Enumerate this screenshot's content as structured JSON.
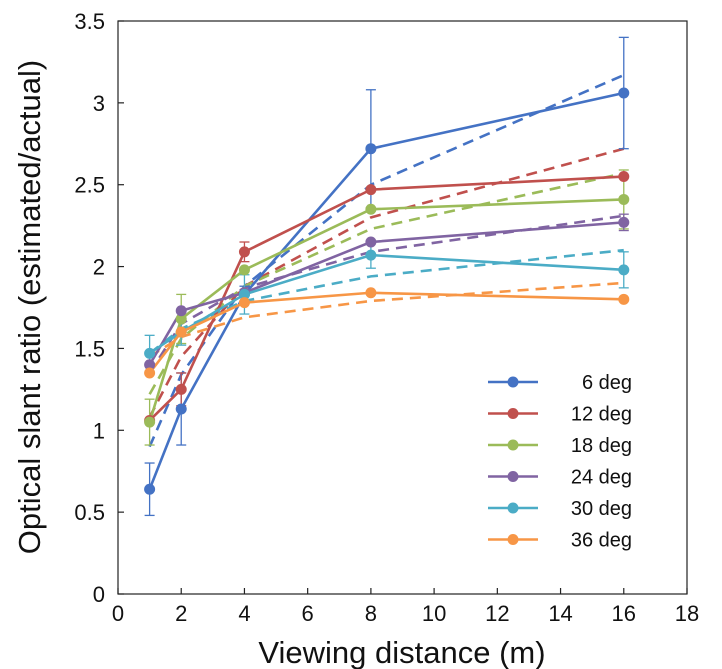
{
  "chart_data": {
    "type": "line",
    "xlabel": "Viewing distance (m)",
    "ylabel": "Optical slant ratio (estimated/actual)",
    "xlim": [
      0,
      18
    ],
    "ylim": [
      0,
      3.5
    ],
    "xticks": [
      0,
      2,
      4,
      6,
      8,
      10,
      12,
      14,
      16,
      18
    ],
    "yticks": [
      0,
      0.5,
      1,
      1.5,
      2,
      2.5,
      3,
      3.5
    ],
    "ytick_labels": [
      "0",
      "0.5",
      "1",
      "1.5",
      "2",
      "2.5",
      "3",
      "3.5"
    ],
    "grid": false,
    "legend_position": "bottom-right",
    "x": [
      1,
      2,
      4,
      8,
      16
    ],
    "series": [
      {
        "name": "6 deg",
        "color": "#4472C4",
        "values": [
          0.64,
          1.13,
          1.83,
          2.72,
          3.06
        ],
        "error": [
          0.16,
          0.22,
          0.05,
          0.36,
          0.34
        ],
        "fit_x": [
          1,
          2,
          4,
          8,
          16
        ],
        "fit_y": [
          0.9,
          1.34,
          1.88,
          2.5,
          3.17
        ]
      },
      {
        "name": "12 deg",
        "color": "#C0504D",
        "values": [
          1.06,
          1.25,
          2.09,
          2.47,
          2.55
        ],
        "error": [
          0,
          0.1,
          0.06,
          0,
          0
        ],
        "fit_x": [
          1,
          2,
          4,
          8,
          16
        ],
        "fit_y": [
          1.08,
          1.45,
          1.88,
          2.3,
          2.72
        ]
      },
      {
        "name": "18 deg",
        "color": "#9BBB59",
        "values": [
          1.05,
          1.68,
          1.98,
          2.35,
          2.41
        ],
        "error": [
          0.14,
          0.15,
          0,
          0,
          0.18
        ],
        "fit_x": [
          1,
          2,
          4,
          8,
          16
        ],
        "fit_y": [
          1.22,
          1.56,
          1.88,
          2.23,
          2.57
        ]
      },
      {
        "name": "24 deg",
        "color": "#8064A2",
        "values": [
          1.4,
          1.73,
          1.84,
          2.15,
          2.27
        ],
        "error": [
          0,
          0,
          0,
          0,
          0.05
        ],
        "fit_x": [
          1,
          2,
          4,
          8,
          16
        ],
        "fit_y": [
          1.35,
          1.65,
          1.87,
          2.09,
          2.31
        ]
      },
      {
        "name": "30 deg",
        "color": "#4BACC6",
        "values": [
          1.47,
          1.6,
          1.83,
          2.07,
          1.98
        ],
        "error": [
          0.11,
          0.08,
          0.12,
          0.08,
          0.11
        ],
        "fit_x": [
          1,
          2,
          4,
          8,
          16
        ],
        "fit_y": [
          1.47,
          1.62,
          1.79,
          1.94,
          2.1
        ]
      },
      {
        "name": "36 deg",
        "color": "#F79646",
        "values": [
          1.35,
          1.6,
          1.78,
          1.84,
          1.8
        ],
        "error": [
          0,
          0,
          0,
          0,
          0
        ],
        "fit_x": [
          1,
          2,
          4,
          8,
          16
        ],
        "fit_y": [
          1.45,
          1.57,
          1.69,
          1.79,
          1.9
        ]
      }
    ]
  }
}
